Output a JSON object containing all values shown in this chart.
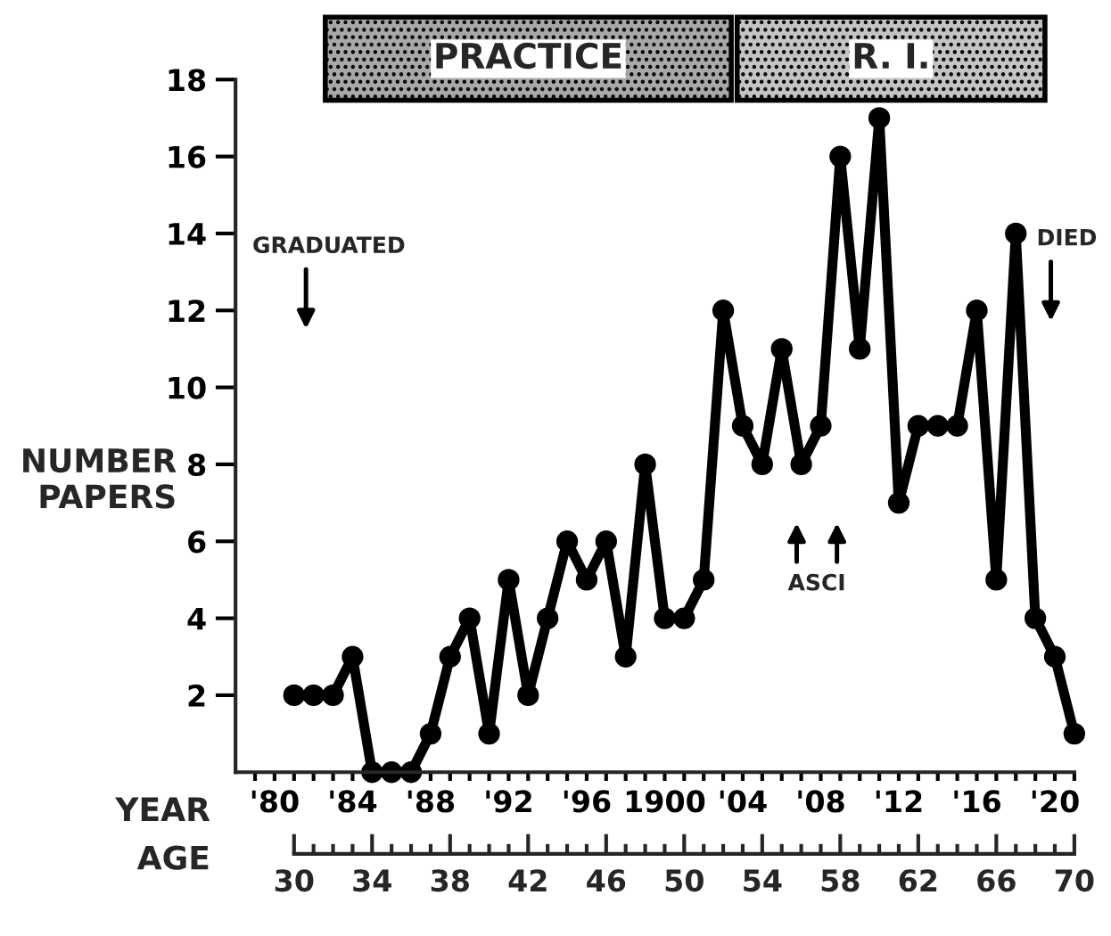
{
  "chart_data": {
    "type": "line",
    "ylabel": "NUMBER\nPAPERS",
    "xlabel": "YEAR",
    "x2label": "AGE",
    "x": [
      1881,
      1882,
      1883,
      1884,
      1885,
      1886,
      1887,
      1888,
      1889,
      1890,
      1891,
      1892,
      1893,
      1894,
      1895,
      1896,
      1897,
      1898,
      1899,
      1900,
      1901,
      1902,
      1903,
      1904,
      1905,
      1906,
      1907,
      1908,
      1909,
      1910,
      1911,
      1912,
      1913,
      1914,
      1915,
      1916,
      1917,
      1918,
      1919,
      1920,
      1921
    ],
    "series": [
      {
        "color": "#000000",
        "values": [
          2,
          2,
          2,
          3,
          0,
          0,
          0,
          1,
          3,
          4,
          1,
          5,
          2,
          4,
          6,
          5,
          6,
          3,
          8,
          4,
          4,
          5,
          12,
          9,
          8,
          11,
          8,
          9,
          16,
          11,
          17,
          7,
          9,
          9,
          9,
          12,
          5,
          14,
          4,
          3,
          1
        ]
      }
    ],
    "marker": "circle",
    "line_style": "solid",
    "ylim": [
      0,
      18
    ],
    "yticks": [
      2,
      4,
      6,
      8,
      10,
      12,
      14,
      16,
      18
    ],
    "xlim": [
      1878,
      1921
    ],
    "xticks": [
      {
        "value": 1879,
        "label": null
      },
      {
        "value": 1880,
        "label": "'80"
      },
      {
        "value": 1881,
        "label": null
      },
      {
        "value": 1882,
        "label": null
      },
      {
        "value": 1883,
        "label": null
      },
      {
        "value": 1884,
        "label": "'84"
      },
      {
        "value": 1885,
        "label": null
      },
      {
        "value": 1886,
        "label": null
      },
      {
        "value": 1887,
        "label": null
      },
      {
        "value": 1888,
        "label": "'88"
      },
      {
        "value": 1889,
        "label": null
      },
      {
        "value": 1890,
        "label": null
      },
      {
        "value": 1891,
        "label": null
      },
      {
        "value": 1892,
        "label": "'92"
      },
      {
        "value": 1893,
        "label": null
      },
      {
        "value": 1894,
        "label": null
      },
      {
        "value": 1895,
        "label": null
      },
      {
        "value": 1896,
        "label": "'96"
      },
      {
        "value": 1897,
        "label": null
      },
      {
        "value": 1898,
        "label": null
      },
      {
        "value": 1899,
        "label": null
      },
      {
        "value": 1900,
        "label": "1900"
      },
      {
        "value": 1901,
        "label": null
      },
      {
        "value": 1902,
        "label": null
      },
      {
        "value": 1903,
        "label": null
      },
      {
        "value": 1904,
        "label": "'04"
      },
      {
        "value": 1905,
        "label": null
      },
      {
        "value": 1906,
        "label": null
      },
      {
        "value": 1907,
        "label": null
      },
      {
        "value": 1908,
        "label": "'08"
      },
      {
        "value": 1909,
        "label": null
      },
      {
        "value": 1910,
        "label": null
      },
      {
        "value": 1911,
        "label": null
      },
      {
        "value": 1912,
        "label": "'12"
      },
      {
        "value": 1913,
        "label": null
      },
      {
        "value": 1914,
        "label": null
      },
      {
        "value": 1915,
        "label": null
      },
      {
        "value": 1916,
        "label": "'16"
      },
      {
        "value": 1917,
        "label": null
      },
      {
        "value": 1918,
        "label": null
      },
      {
        "value": 1919,
        "label": null
      },
      {
        "value": 1920,
        "label": "'20"
      },
      {
        "value": 1921,
        "label": null
      }
    ],
    "x2lim": [
      27,
      70
    ],
    "x2ticks": [
      30,
      {
        "value": 31,
        "label": null
      },
      {
        "value": 32,
        "label": null
      },
      {
        "value": 33,
        "label": null
      },
      34,
      {
        "value": 35,
        "label": null
      },
      {
        "value": 36,
        "label": null
      },
      {
        "value": 37,
        "label": null
      },
      38,
      {
        "value": 39,
        "label": null
      },
      {
        "value": 40,
        "label": null
      },
      {
        "value": 41,
        "label": null
      },
      42,
      {
        "value": 43,
        "label": null
      },
      {
        "value": 44,
        "label": null
      },
      {
        "value": 45,
        "label": null
      },
      46,
      {
        "value": 47,
        "label": null
      },
      {
        "value": 48,
        "label": null
      },
      {
        "value": 49,
        "label": null
      },
      50,
      {
        "value": 51,
        "label": null
      },
      {
        "value": 52,
        "label": null
      },
      {
        "value": 53,
        "label": null
      },
      54,
      {
        "value": 55,
        "label": null
      },
      {
        "value": 56,
        "label": null
      },
      {
        "value": 57,
        "label": null
      },
      58,
      {
        "value": 59,
        "label": null
      },
      {
        "value": 60,
        "label": null
      },
      {
        "value": 61,
        "label": null
      },
      62,
      {
        "value": 63,
        "label": null
      },
      {
        "value": 64,
        "label": null
      },
      {
        "value": 65,
        "label": null
      },
      66,
      {
        "value": 67,
        "label": null
      },
      {
        "value": 68,
        "label": null
      },
      {
        "value": 69,
        "label": null
      },
      70
    ],
    "annotations": [
      "GRADUATED",
      "DIED",
      "ASCI",
      "PRACTICE",
      "R. I."
    ],
    "grid": false,
    "legend": false
  }
}
